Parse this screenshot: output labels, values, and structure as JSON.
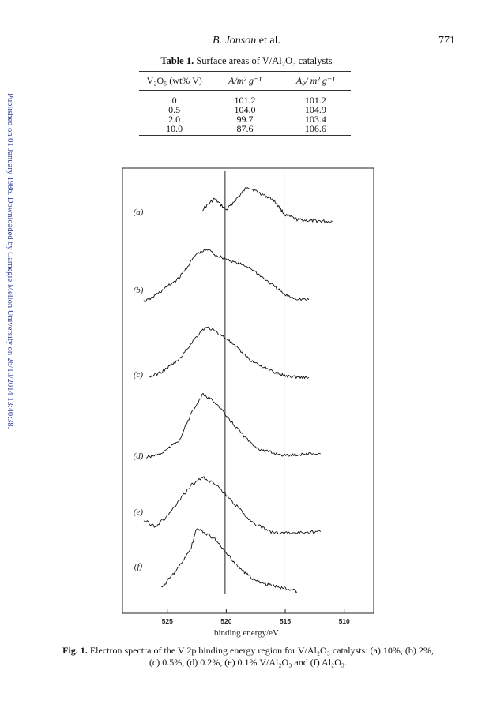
{
  "running_head": {
    "author_italic": "B. Jonson",
    "author_rest": " et al.",
    "page_number": "771"
  },
  "side_note": "Published on 01 January 1986. Downloaded by Carnegie Mellon University on 26/10/2014 13:40:38.",
  "table": {
    "label": "Table 1.",
    "title": " Surface areas of V/Al₂O₃ catalysts",
    "columns": [
      "V₂O₅ (wt% V)",
      "A/m² g⁻¹",
      "A₀/ m² g⁻¹"
    ],
    "rows": [
      [
        "0",
        "101.2",
        "101.2"
      ],
      [
        "0.5",
        "104.0",
        "104.9"
      ],
      [
        "2.0",
        "99.7",
        "103.4"
      ],
      [
        "10.0",
        "87.6",
        "106.6"
      ]
    ]
  },
  "chart_data": {
    "type": "line",
    "xlabel": "binding energy/eV",
    "x_ticks": [
      "525",
      "520",
      "515",
      "510"
    ],
    "xlim": [
      528.8,
      507.5
    ],
    "reference_lines_eV": [
      520.1,
      515.1
    ],
    "series": [
      {
        "name": "(a)",
        "points": [
          [
            522,
            0.35
          ],
          [
            521,
            0.63
          ],
          [
            520,
            0.33
          ],
          [
            519,
            0.67
          ],
          [
            518.2,
            0.95
          ],
          [
            517.3,
            0.8
          ],
          [
            516,
            0.6
          ],
          [
            515,
            0.2
          ],
          [
            514,
            0.08
          ],
          [
            513,
            0.05
          ],
          [
            511,
            0.03
          ]
        ]
      },
      {
        "name": "(b)",
        "points": [
          [
            527,
            0.0
          ],
          [
            526.5,
            0.04
          ],
          [
            525.5,
            0.2
          ],
          [
            524,
            0.45
          ],
          [
            522.5,
            0.92
          ],
          [
            521.5,
            1.0
          ],
          [
            521,
            0.9
          ],
          [
            519,
            0.73
          ],
          [
            518,
            0.65
          ],
          [
            516,
            0.3
          ],
          [
            515,
            0.12
          ],
          [
            514,
            0.05
          ],
          [
            513,
            0.03
          ]
        ]
      },
      {
        "name": "(c)",
        "points": [
          [
            526.5,
            0.08
          ],
          [
            525.5,
            0.17
          ],
          [
            524,
            0.4
          ],
          [
            523,
            0.7
          ],
          [
            522,
            0.97
          ],
          [
            521.5,
            1.0
          ],
          [
            520,
            0.8
          ],
          [
            519,
            0.6
          ],
          [
            518,
            0.4
          ],
          [
            517,
            0.28
          ],
          [
            516,
            0.17
          ],
          [
            515,
            0.1
          ],
          [
            514,
            0.08
          ],
          [
            513,
            0.07
          ]
        ]
      },
      {
        "name": "(d)",
        "points": [
          [
            526.8,
            0.04
          ],
          [
            525.5,
            0.1
          ],
          [
            524,
            0.3
          ],
          [
            523,
            0.7
          ],
          [
            522,
            1.0
          ],
          [
            521,
            0.9
          ],
          [
            520,
            0.67
          ],
          [
            519,
            0.47
          ],
          [
            518,
            0.27
          ],
          [
            517,
            0.15
          ],
          [
            515,
            0.07
          ],
          [
            513,
            0.1
          ],
          [
            512,
            0.1
          ]
        ]
      },
      {
        "name": "(e)",
        "points": [
          [
            527,
            0.3
          ],
          [
            526,
            0.2
          ],
          [
            525,
            0.36
          ],
          [
            524,
            0.6
          ],
          [
            523,
            0.85
          ],
          [
            522,
            0.98
          ],
          [
            521,
            0.88
          ],
          [
            520,
            0.69
          ],
          [
            519,
            0.5
          ],
          [
            518,
            0.3
          ],
          [
            517,
            0.18
          ],
          [
            516,
            0.1
          ],
          [
            514,
            0.1
          ],
          [
            512,
            0.12
          ]
        ]
      },
      {
        "name": "(f)",
        "points": [
          [
            525.5,
            0.08
          ],
          [
            524,
            0.4
          ],
          [
            523,
            0.67
          ],
          [
            522.5,
            0.97
          ],
          [
            521,
            0.82
          ],
          [
            520,
            0.6
          ],
          [
            519,
            0.4
          ],
          [
            518,
            0.25
          ],
          [
            517,
            0.15
          ],
          [
            515,
            0.08
          ],
          [
            514,
            0.03
          ]
        ]
      }
    ]
  },
  "figure_caption": {
    "label": "Fig. 1.",
    "line1": " Electron spectra of the V 2p binding energy region for V/Al₂O₃ catalysts: (a) 10%, (b) 2%,",
    "line2": "(c) 0.5%, (d) 0.2%, (e) 0.1% V/Al₂O₃ and (f) Al₂O₃."
  }
}
